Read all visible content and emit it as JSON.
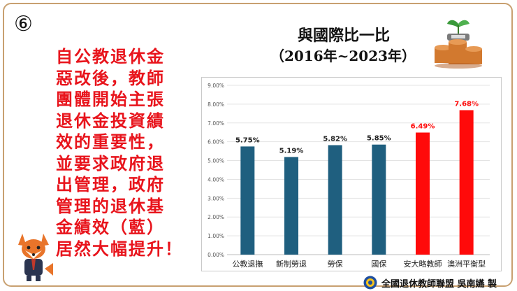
{
  "slide": {
    "badge": "⑥",
    "left_text": [
      "自公教退休金",
      "惡改後，教師",
      "團體開始主張",
      "退休金投資績",
      "效的重要性，",
      "並要求政府退",
      "出管理，政府",
      "管理的退休基",
      "金績效（藍）",
      "居然大幅提升！"
    ],
    "footer": "全國退休教師聯盟 吳南嬿 製"
  },
  "colors": {
    "blue": "#1f5f7f",
    "red": "#ff0a0a",
    "left_text": "#e8141c",
    "border": "#c8a070"
  },
  "icons": [
    "fox-mascot-icon",
    "coin-stack-plant-icon",
    "union-logo-icon"
  ],
  "chart_data": {
    "type": "bar",
    "title": "與國際比一比",
    "subtitle": "（2016年~2023年）",
    "categories": [
      "公教退撫",
      "新制勞退",
      "勞保",
      "國保",
      "安大略教師",
      "澳洲平衡型"
    ],
    "values": [
      5.75,
      5.19,
      5.82,
      5.85,
      6.49,
      7.68
    ],
    "value_labels": [
      "5.75%",
      "5.19%",
      "5.82%",
      "5.85%",
      "6.49%",
      "7.68%"
    ],
    "bar_colors": [
      "#1f5f7f",
      "#1f5f7f",
      "#1f5f7f",
      "#1f5f7f",
      "#ff0a0a",
      "#ff0a0a"
    ],
    "label_colors": [
      "#222222",
      "#222222",
      "#222222",
      "#222222",
      "#ff0a0a",
      "#ff0a0a"
    ],
    "ylim": [
      0,
      9
    ],
    "yticks": [
      0,
      1,
      2,
      3,
      4,
      5,
      6,
      7,
      8,
      9
    ],
    "ytick_labels": [
      "0.00%",
      "1.00%",
      "2.00%",
      "3.00%",
      "4.00%",
      "5.00%",
      "6.00%",
      "7.00%",
      "8.00%",
      "9.00%"
    ],
    "xlabel": "",
    "ylabel": "",
    "grid": true,
    "legend": "none"
  }
}
